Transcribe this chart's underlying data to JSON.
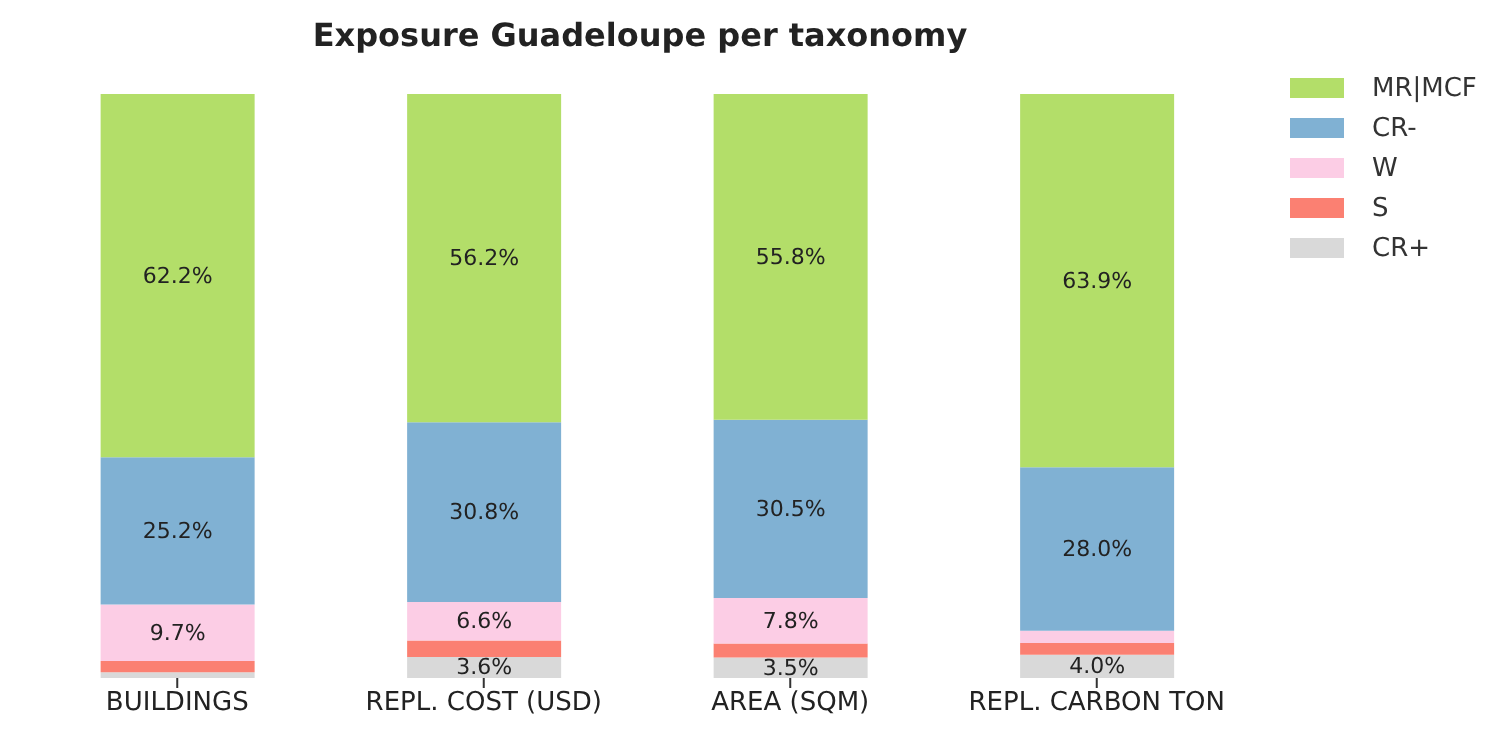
{
  "chart_data": {
    "type": "bar",
    "title": "Exposure Guadeloupe per taxonomy",
    "stacked": true,
    "legend": "top right",
    "categories": [
      "BUILDINGS",
      "REPL. COST (USD)",
      "AREA (SQM)",
      "REPL. CARBON TON"
    ],
    "series": [
      {
        "name": "CR+",
        "color": "#d9d9d9",
        "values": [
          1.0,
          3.6,
          3.5,
          4.0
        ],
        "value_labels": [
          null,
          "3.6%",
          "3.5%",
          "4.0%"
        ]
      },
      {
        "name": "S",
        "color": "#fb8072",
        "values": [
          1.9,
          2.8,
          2.4,
          2.0
        ],
        "value_labels": [
          null,
          null,
          null,
          null
        ]
      },
      {
        "name": "W",
        "color": "#fccde5",
        "values": [
          9.7,
          6.6,
          7.8,
          2.1
        ],
        "value_labels": [
          "9.7%",
          "6.6%",
          "7.8%",
          null
        ]
      },
      {
        "name": "CR-",
        "color": "#80b1d3",
        "values": [
          25.2,
          30.8,
          30.5,
          28.0
        ],
        "value_labels": [
          "25.2%",
          "30.8%",
          "30.5%",
          "28.0%"
        ]
      },
      {
        "name": "MR|MCF",
        "color": "#b3de69",
        "values": [
          62.2,
          56.2,
          55.8,
          63.9
        ],
        "value_labels": [
          "62.2%",
          "56.2%",
          "55.8%",
          "63.9%"
        ]
      }
    ]
  }
}
